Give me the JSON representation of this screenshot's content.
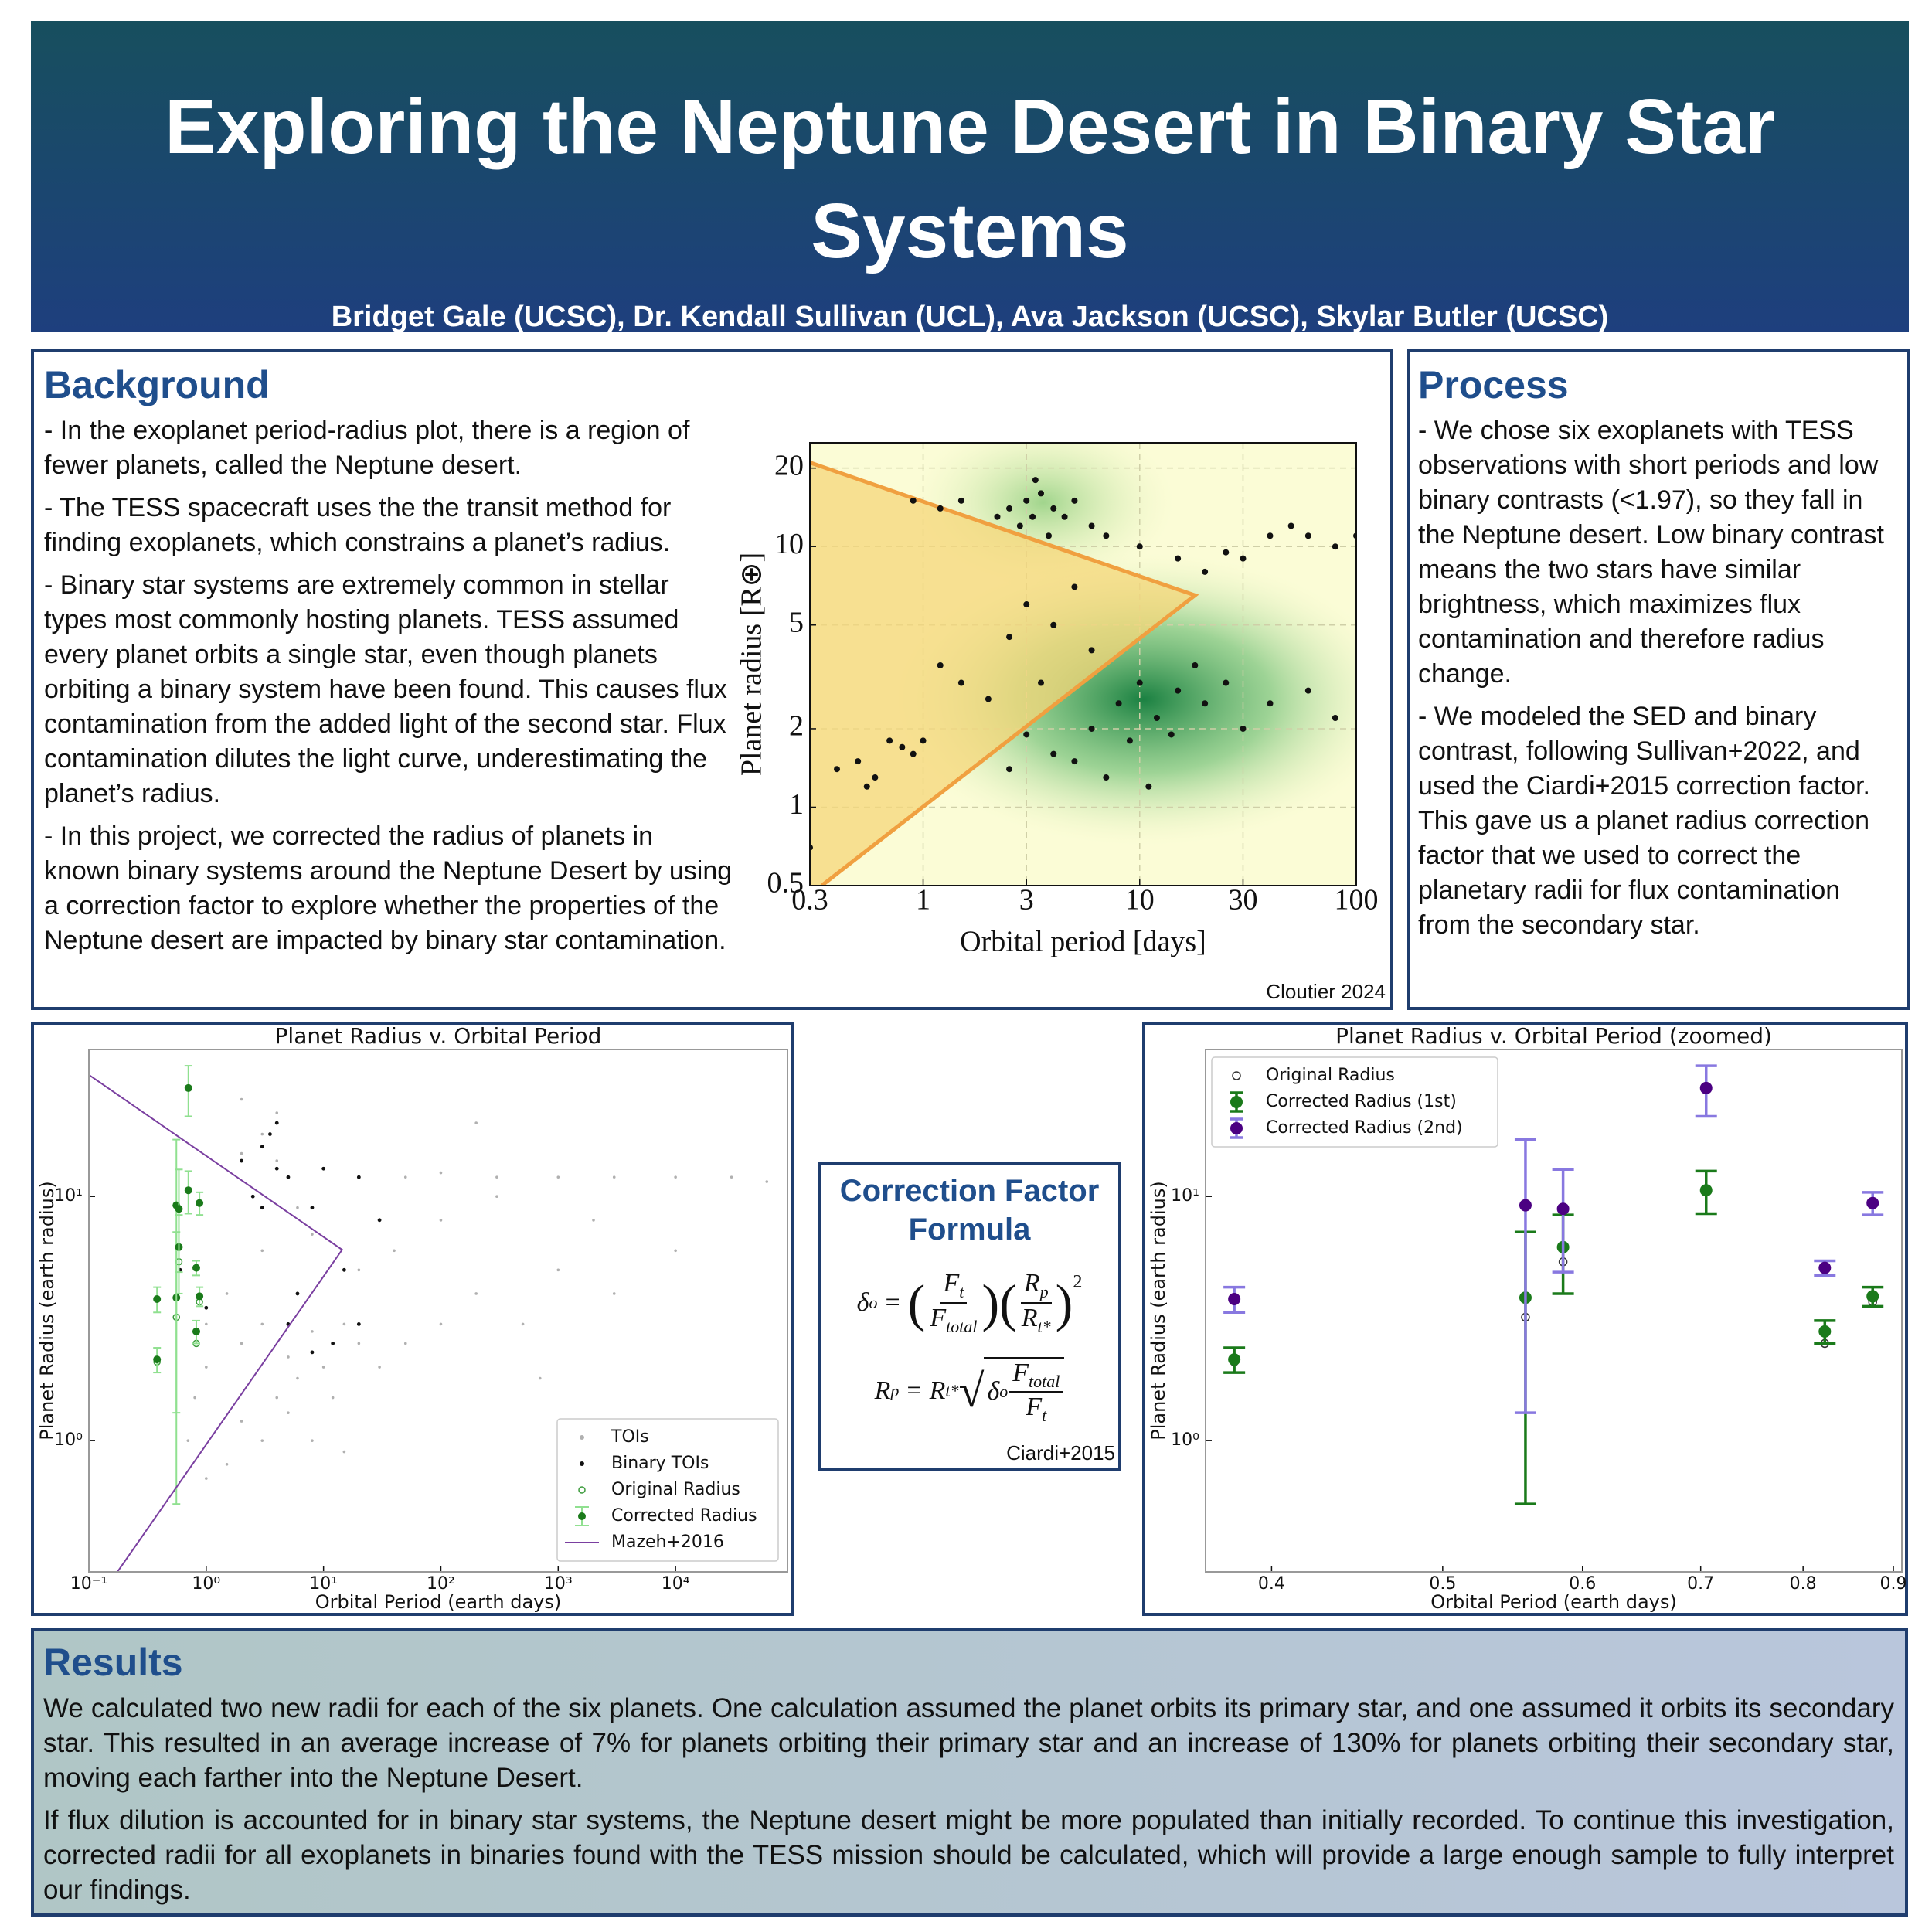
{
  "header": {
    "title": "Exploring the Neptune Desert in Binary Star Systems",
    "authors": "Bridget Gale (UCSC), Dr. Kendall Sullivan (UCL), Ava Jackson (UCSC), Skylar Butler (UCSC)"
  },
  "background": {
    "heading": "Background",
    "paragraphs": [
      "- In the exoplanet period-radius plot, there is a region of fewer planets, called the Neptune desert.",
      "- The TESS spacecraft uses the the transit method for finding exoplanets, which constrains a planet’s radius.",
      "- Binary star systems are extremely common in stellar types most commonly hosting planets. TESS assumed every planet orbits a single star, even though planets orbiting a binary system have been found. This causes flux contamination from the added light of the second star. Flux contamination dilutes the light curve, underestimating the planet’s radius.",
      "- In this project, we corrected the radius of planets in known binary systems around the Neptune Desert by using a correction factor to explore whether the properties of the Neptune desert are impacted by binary star contamination."
    ],
    "figure_credit": "Cloutier 2024"
  },
  "process": {
    "heading": "Process",
    "paragraphs": [
      "- We chose six exoplanets with TESS observations with short periods and low binary contrasts (<1.97), so they fall in the Neptune desert. Low binary contrast means the two stars have similar brightness, which maximizes flux contamination and therefore radius change.",
      "- We modeled the SED and binary contrast, following Sullivan+2022, and used the Ciardi+2015 correction factor. This gave us a planet radius correction factor that we used to correct the planetary radii for flux contamination from the secondary star."
    ]
  },
  "formula": {
    "heading": "Correction Factor Formula",
    "eq1": {
      "lhs": [
        "δ",
        "o"
      ],
      "rel": "=",
      "open": "(",
      "close": ")",
      "frac1": {
        "num": [
          "F",
          "t"
        ],
        "den": [
          "F",
          "total"
        ]
      },
      "frac2": {
        "num": [
          "R",
          "p"
        ],
        "den": [
          "R",
          "t*"
        ]
      },
      "power": "2"
    },
    "eq2": {
      "lhs": [
        "R",
        "p"
      ],
      "rel": "=",
      "coef": [
        "R",
        "t*"
      ],
      "radical": "√",
      "radicand": {
        "factor": [
          "δ",
          "o"
        ],
        "num": [
          "F",
          "total"
        ],
        "den": [
          "F",
          "t"
        ]
      }
    },
    "credit": "Ciardi+2015"
  },
  "results": {
    "heading": "Results",
    "paragraphs": [
      "We calculated two new radii for each of the six planets. One calculation assumed the planet orbits its primary star, and one assumed it orbits its secondary star. This resulted in an average increase of 7% for planets orbiting their primary star and an increase of 130% for planets orbiting their secondary star, moving each farther into the Neptune Desert.",
      "If flux dilution is accounted for in binary star systems, the Neptune desert might be more populated than initially recorded. To continue this investigation, corrected radii for all exoplanets in binaries found with the TESS mission should be calculated, which will provide a large enough sample to fully interpret our findings."
    ]
  },
  "chart_data": [
    {
      "type": "scatter",
      "x_label": "Orbital period [days]",
      "y_label": "Planet radius [R⊕]",
      "xscale": "log",
      "yscale": "log",
      "xlim": [
        0.3,
        100
      ],
      "ylim": [
        0.5,
        25
      ],
      "xticks": [
        0.3,
        1,
        3,
        10,
        30,
        100
      ],
      "yticks": [
        0.5,
        1,
        2,
        5,
        10,
        20
      ],
      "grid": true,
      "series": [
        {
          "type": "area",
          "color": "#f0a040",
          "fill": "#f6d77a",
          "x": [
            0.3,
            18,
            0.34
          ],
          "values": [
            21,
            6.5,
            0.5
          ]
        },
        {
          "type": "scatter",
          "color": "#111111",
          "x": [
            2.5,
            3,
            3.2,
            3.5,
            4,
            2.8,
            3.8,
            4.5,
            5,
            2.2,
            3.3,
            6,
            7,
            1.5,
            1.2,
            0.9,
            10,
            15,
            20,
            30,
            40,
            60,
            80,
            100,
            50,
            25,
            3,
            4,
            5,
            2.5,
            6,
            3.5,
            8,
            10,
            12,
            15,
            6,
            20,
            9,
            25,
            30,
            5,
            4,
            7,
            11,
            40,
            60,
            80,
            18,
            14,
            3,
            2.5,
            0.5,
            0.6,
            0.7,
            0.8,
            1,
            0.9,
            0.4,
            1.2,
            1.5,
            2,
            0.3,
            0.55
          ],
          "values": [
            14,
            15,
            13,
            16,
            14,
            12,
            11,
            13,
            15,
            13,
            18,
            12,
            11,
            15,
            14,
            15,
            10,
            9,
            8,
            9,
            11,
            11,
            10,
            11,
            12,
            9.5,
            6,
            5,
            7,
            4.5,
            4,
            3,
            2.5,
            3,
            2.2,
            2.8,
            2,
            2.5,
            1.8,
            3,
            2,
            1.5,
            1.6,
            1.3,
            1.2,
            2.5,
            2.8,
            2.2,
            3.5,
            1.9,
            1.9,
            1.4,
            1.5,
            1.3,
            1.8,
            1.7,
            1.8,
            1.6,
            1.4,
            3.5,
            3,
            2.6,
            0.7,
            1.2
          ]
        }
      ]
    },
    {
      "type": "scatter",
      "title": "Planet Radius v. Orbital Period",
      "x_label": "Orbital Period (earth days)",
      "y_label": "Planet Radius (earth radius)",
      "xscale": "log",
      "yscale": "log",
      "xlim": [
        0.1,
        90000
      ],
      "ylim": [
        0.29,
        40
      ],
      "xticks": [
        {
          "value": 0.1,
          "label": "10⁻¹"
        },
        {
          "value": 1,
          "label": "10⁰"
        },
        {
          "value": 10,
          "label": "10¹"
        },
        {
          "value": 100,
          "label": "10²"
        },
        {
          "value": 1000,
          "label": "10³"
        },
        {
          "value": 10000,
          "label": "10⁴"
        }
      ],
      "yticks": [
        {
          "value": 1,
          "label": "10⁰"
        },
        {
          "value": 10,
          "label": "10¹"
        }
      ],
      "grid": false,
      "legend": "lower right",
      "series": [
        {
          "name": "TOIs",
          "type": "scatter",
          "color": "#b0b0b0",
          "x": [
            1,
            2,
            3,
            5,
            8,
            10,
            15,
            20,
            30,
            4,
            6,
            12,
            2,
            3,
            5,
            50,
            100,
            200,
            1000,
            40,
            100,
            300,
            20,
            50,
            100,
            300,
            1000,
            3000,
            10000,
            30000,
            60000,
            2,
            3,
            4,
            5,
            6,
            8,
            3,
            1.5,
            1,
            20,
            500,
            3000,
            10000,
            2,
            4,
            700,
            8,
            15,
            1.5,
            0.8,
            1,
            0.7,
            200,
            2000
          ],
          "values": [
            2,
            2.5,
            3,
            2.2,
            2.8,
            2,
            3,
            2.5,
            2,
            1.5,
            1.8,
            1.5,
            1.2,
            1,
            1.3,
            2.5,
            3,
            4,
            5,
            6,
            8,
            10,
            12,
            12,
            12.5,
            12,
            12,
            12,
            12,
            12,
            11.5,
            15,
            18,
            14,
            12,
            9,
            7,
            6,
            4,
            3,
            5,
            3,
            4,
            6,
            25,
            22,
            1.8,
            1,
            0.9,
            0.8,
            1.5,
            0.7,
            1,
            20,
            8
          ]
        },
        {
          "name": "Binary TOIs",
          "type": "scatter",
          "color": "#111111",
          "x": [
            2,
            3,
            4,
            3.5,
            5,
            2.5,
            8,
            10,
            15,
            6,
            8,
            12,
            20,
            5,
            1,
            0.6,
            3,
            30,
            20,
            4
          ],
          "values": [
            14,
            16,
            13,
            18,
            12,
            10,
            9,
            13,
            5,
            4,
            2.3,
            2.5,
            3,
            3,
            3.5,
            5,
            9,
            8,
            12,
            20
          ]
        },
        {
          "name": "Original Radius",
          "type": "scatter",
          "hollow": true,
          "color": "#3a9a3a",
          "x": [
            0.381,
            0.557,
            0.585,
            0.705,
            0.823,
            0.876
          ],
          "values": [
            2.1,
            3.2,
            5.4,
            10.6,
            2.5,
            3.7
          ]
        },
        {
          "name": "Corrected Radius",
          "type": "errorbar",
          "color": "#1a7a1a",
          "error_color": "#90e090",
          "x": [
            0.381,
            0.381,
            0.557,
            0.557,
            0.585,
            0.585,
            0.705,
            0.705,
            0.823,
            0.823,
            0.876,
            0.876
          ],
          "values": [
            2.15,
            3.8,
            3.85,
            9.2,
            6.2,
            8.9,
            10.6,
            27.8,
            2.8,
            5.1,
            3.9,
            9.4
          ],
          "errors": [
            0.25,
            0.45,
            3.3,
            7.9,
            2.2,
            4,
            2.1,
            6.5,
            0.3,
            0.35,
            0.35,
            1.0
          ]
        },
        {
          "name": "Mazeh+2016",
          "type": "line",
          "color": "#7a3fa0",
          "x": [
            0.1,
            14.4,
            0.175
          ],
          "values": [
            31.5,
            6.05,
            0.29
          ]
        }
      ]
    },
    {
      "type": "scatter",
      "title": "Planet Radius v. Orbital Period (zoomed)",
      "x_label": "Orbital Period (earth days)",
      "y_label": "Planet Radius (earth radius)",
      "xscale": "log",
      "yscale": "log",
      "xlim": [
        0.367,
        0.91
      ],
      "ylim": [
        0.29,
        40
      ],
      "xticks": [
        0.4,
        0.5,
        0.6,
        0.7,
        0.8,
        0.9
      ],
      "yticks": [
        {
          "value": 1,
          "label": "10⁰"
        },
        {
          "value": 10,
          "label": "10¹"
        }
      ],
      "grid": false,
      "legend": "upper left",
      "series": [
        {
          "name": "Original Radius",
          "type": "scatter",
          "hollow": true,
          "color": "#333333",
          "x": [
            0.381,
            0.557,
            0.585,
            0.705,
            0.823,
            0.876
          ],
          "values": [
            2.1,
            3.2,
            5.4,
            10.6,
            2.5,
            3.7
          ]
        },
        {
          "name": "Corrected Radius (1st)",
          "type": "errorbar",
          "color": "#1a7a1a",
          "error_color": "#1a7a1a",
          "x": [
            0.381,
            0.557,
            0.585,
            0.705,
            0.823,
            0.876
          ],
          "values": [
            2.15,
            3.85,
            6.2,
            10.6,
            2.8,
            3.9
          ],
          "errors": [
            0.25,
            3.3,
            2.2,
            2.1,
            0.3,
            0.35
          ]
        },
        {
          "name": "Corrected Radius (2nd)",
          "type": "errorbar",
          "color": "#4b0082",
          "error_color": "#8878e0",
          "x": [
            0.381,
            0.557,
            0.585,
            0.705,
            0.823,
            0.876
          ],
          "values": [
            3.8,
            9.2,
            8.9,
            27.8,
            5.1,
            9.4
          ],
          "errors": [
            0.45,
            7.9,
            4,
            6.5,
            0.35,
            1.0
          ]
        }
      ]
    }
  ]
}
